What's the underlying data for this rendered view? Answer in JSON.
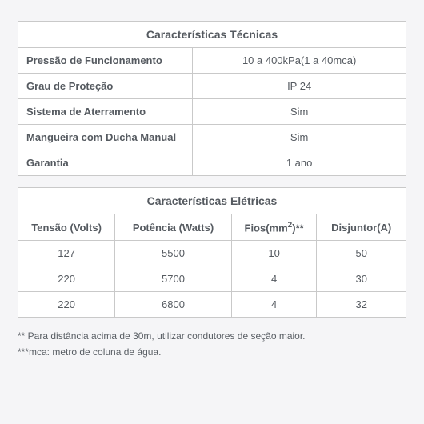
{
  "table1": {
    "title": "Características Técnicas",
    "rows": [
      {
        "label": "Pressão de Funcionamento",
        "value": "10 a 400kPa(1 a 40mca)"
      },
      {
        "label": "Grau de Proteção",
        "value": "IP 24"
      },
      {
        "label": "Sistema de Aterramento",
        "value": "Sim"
      },
      {
        "label": "Mangueira com Ducha Manual",
        "value": "Sim"
      },
      {
        "label": "Garantia",
        "value": "1 ano"
      }
    ]
  },
  "table2": {
    "title": "Características Elétricas",
    "columns": {
      "c1": "Tensão (Volts)",
      "c2": "Potência (Watts)",
      "c3_prefix": "Fios(mm",
      "c3_suffix": ")**",
      "c3_sup": "2",
      "c4": "Disjuntor(A)"
    },
    "rows": [
      {
        "c1": "127",
        "c2": "5500",
        "c3": "10",
        "c4": "50"
      },
      {
        "c1": "220",
        "c2": "5700",
        "c3": "4",
        "c4": "30"
      },
      {
        "c1": "220",
        "c2": "6800",
        "c3": "4",
        "c4": "32"
      }
    ]
  },
  "footnotes": {
    "f1": "** Para distância acima de 30m, utilizar condutores de seção maior.",
    "f2": "***mca: metro de coluna de água."
  },
  "style": {
    "border_color": "#c9c9c9",
    "bg_page": "#f5f5f7",
    "bg_table": "#ffffff",
    "text_color": "#555a60",
    "header_fontsize": 14,
    "cell_fontsize": 13,
    "footnote_fontsize": 12
  }
}
